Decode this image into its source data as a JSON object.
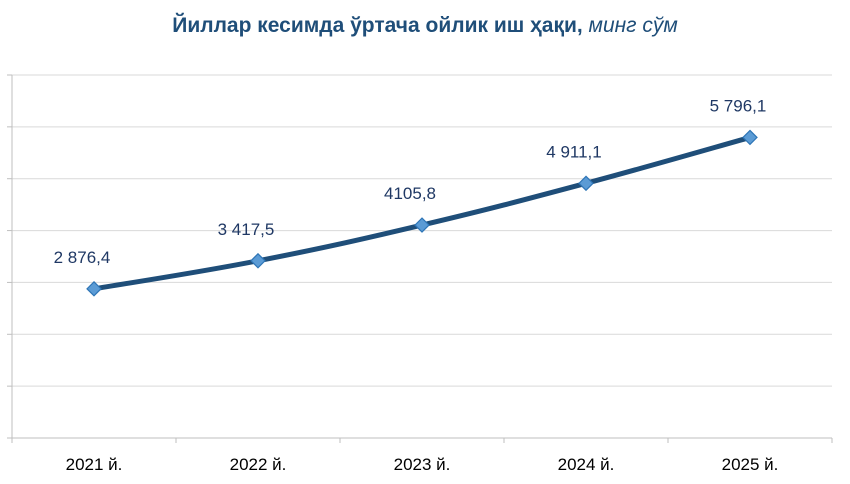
{
  "title": {
    "main": "Йиллар кесимда ўртача ойлик иш ҳақи,",
    "unit": "минг сўм"
  },
  "colors": {
    "title": "#1f4e79",
    "line": "#1f4e79",
    "marker_fill": "#5b9bd5",
    "marker_stroke": "#2e75b6",
    "grid": "#d9d9d9",
    "axis": "#bfbfbf",
    "data_label": "#1f3864"
  },
  "chart_data": {
    "type": "line",
    "categories": [
      "2021 й.",
      "2022 й.",
      "2023 й.",
      "2024 й.",
      "2025 й."
    ],
    "series": [
      {
        "values": [
          2876.4,
          3417.5,
          4105.8,
          4911.1,
          5796.1
        ],
        "labels": [
          "2 876,4",
          "3 417,5",
          "4105,8",
          "4 911,1",
          "5 796,1"
        ]
      }
    ],
    "title": "Йиллар кесимда ўртача ойлик иш ҳақи, минг сўм",
    "xlabel": "",
    "ylabel": "",
    "ylim": [
      0,
      7000
    ],
    "grid": true,
    "y_tick_labels_shown": false,
    "legend": "none",
    "markers": "diamond",
    "smooth": true
  }
}
